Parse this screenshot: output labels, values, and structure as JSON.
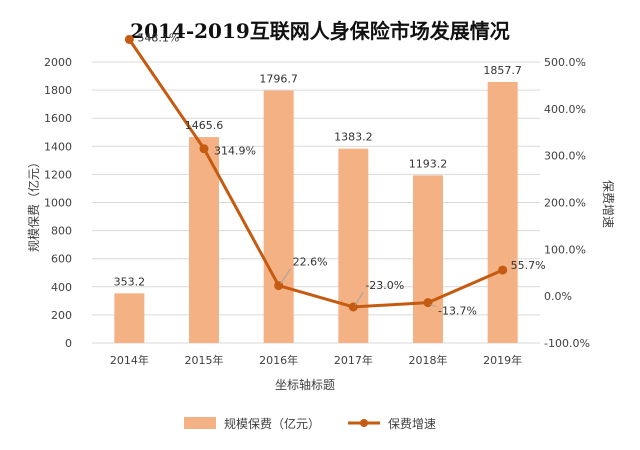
{
  "chart_data": {
    "type": "bar+line",
    "title": "2014-2019互联网人身保险市场发展情况",
    "categories": [
      "2014年",
      "2015年",
      "2016年",
      "2017年",
      "2018年",
      "2019年"
    ],
    "xlabel": "坐标轴标题",
    "ylabel": "规模保费（亿元）",
    "y2label": "保费增速",
    "ylim": [
      0,
      2000
    ],
    "yticks": [
      "0",
      "200",
      "400",
      "600",
      "800",
      "1000",
      "1200",
      "1400",
      "1600",
      "1800",
      "2000"
    ],
    "y2lim": [
      -100,
      500
    ],
    "y2ticks": [
      "-100.0%",
      "0.0%",
      "100.0%",
      "200.0%",
      "300.0%",
      "400.0%",
      "500.0%"
    ],
    "grid": true,
    "legend_position": "bottom",
    "series": [
      {
        "name": "规模保费（亿元）",
        "kind": "bar",
        "axis": "left",
        "color": "#F4B183",
        "values": [
          353.2,
          1465.6,
          1796.7,
          1383.2,
          1193.2,
          1857.7
        ],
        "labels": [
          "353.2",
          "1465.6",
          "1796.7",
          "1383.2",
          "1193.2",
          "1857.7"
        ]
      },
      {
        "name": "保费增速",
        "kind": "line",
        "axis": "right",
        "color": "#C55A11",
        "values": [
          548.1,
          314.9,
          22.6,
          -23.0,
          -13.7,
          55.7
        ],
        "labels": [
          "548.1%",
          "314.9%",
          "22.6%",
          "-23.0%",
          "-13.7%",
          "55.7%"
        ]
      }
    ]
  }
}
